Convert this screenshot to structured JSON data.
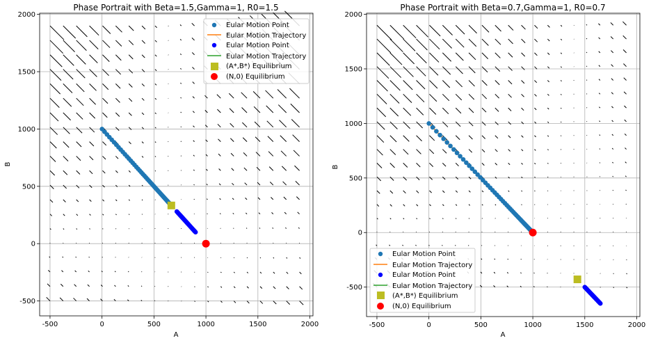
{
  "chart_data": [
    {
      "type": "scatter",
      "title": "Phase Portrait with Beta=1.5,Gamma=1, R0=1.5",
      "xlabel": "A",
      "ylabel": "B",
      "xlim": [
        -600,
        2030
      ],
      "ylim": [
        -630,
        2010
      ],
      "xticks": [
        -500,
        0,
        500,
        1000,
        1500,
        2000
      ],
      "yticks": [
        -500,
        0,
        500,
        1000,
        1500,
        2000
      ],
      "grid": true,
      "legend_position": "top-right",
      "params": {
        "beta": 1.5,
        "gamma": 1,
        "N": 1000
      },
      "equilibria": {
        "star": [
          667,
          333
        ],
        "trivial": [
          1000,
          0
        ]
      },
      "trajectory_1": {
        "start": [
          0,
          1000
        ],
        "end": [
          667,
          333
        ]
      },
      "trajectory_2": {
        "start": [
          720,
          280
        ],
        "end": [
          900,
          100
        ]
      },
      "series": [
        {
          "name": "Eular Motion Point",
          "kind": "marker",
          "color": "#1f77b4"
        },
        {
          "name": "Eular Motion Trajectory",
          "kind": "line",
          "color": "#ff7f0e"
        },
        {
          "name": "Eular Motion Point",
          "kind": "marker",
          "color": "#0000ff"
        },
        {
          "name": "Eular Motion Trajectory",
          "kind": "line",
          "color": "#2ca02c"
        },
        {
          "name": "(A*,B*) Equilibrium",
          "kind": "square",
          "color": "#bcbd22"
        },
        {
          "name": "(N,0) Equilibrium",
          "kind": "circle",
          "color": "#ff0000"
        }
      ]
    },
    {
      "type": "scatter",
      "title": "Phase Portrait with Beta=0.7,Gamma=1, R0=0.7",
      "xlabel": "A",
      "ylabel": "B",
      "xlim": [
        -600,
        2030
      ],
      "ylim": [
        -770,
        2010
      ],
      "xticks": [
        -500,
        0,
        500,
        1000,
        1500,
        2000
      ],
      "yticks": [
        -500,
        0,
        500,
        1000,
        1500,
        2000
      ],
      "grid": true,
      "legend_position": "lower-left",
      "params": {
        "beta": 0.7,
        "gamma": 1,
        "N": 1000
      },
      "equilibria": {
        "star": [
          1429,
          -429
        ],
        "trivial": [
          1000,
          0
        ]
      },
      "trajectory_1": {
        "start": [
          0,
          1000
        ],
        "end": [
          1000,
          0
        ]
      },
      "trajectory_2": {
        "start": [
          1500,
          -500
        ],
        "end": [
          1650,
          -650
        ]
      },
      "series": [
        {
          "name": "Eular Motion Point",
          "kind": "marker",
          "color": "#1f77b4"
        },
        {
          "name": "Eular Motion Trajectory",
          "kind": "line",
          "color": "#ff7f0e"
        },
        {
          "name": "Eular Motion Point",
          "kind": "marker",
          "color": "#0000ff"
        },
        {
          "name": "Eular Motion Trajectory",
          "kind": "line",
          "color": "#2ca02c"
        },
        {
          "name": "(A*,B*) Equilibrium",
          "kind": "square",
          "color": "#bcbd22"
        },
        {
          "name": "(N,0) Equilibrium",
          "kind": "circle",
          "color": "#ff0000"
        }
      ]
    }
  ]
}
